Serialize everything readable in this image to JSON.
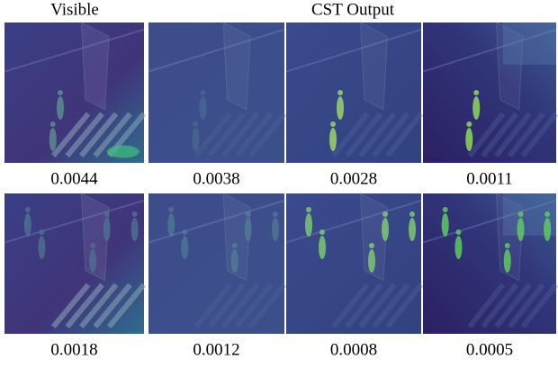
{
  "header": {
    "left": "Visible",
    "right": "CST Output"
  },
  "rows": [
    {
      "scores": [
        "0.0044",
        "0.0038",
        "0.0028",
        "0.0011"
      ]
    },
    {
      "scores": [
        "0.0018",
        "0.0012",
        "0.0008",
        "0.0005"
      ]
    }
  ]
}
